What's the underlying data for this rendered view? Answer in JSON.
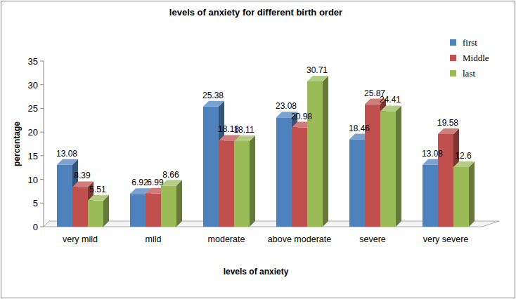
{
  "chart_data": {
    "type": "bar",
    "title": "levels of anxiety for different birth order",
    "x_label": "levels of anxiety",
    "y_label": "percentage",
    "categories": [
      "very mild",
      "mild",
      "moderate",
      "above moderate",
      "severe",
      "very severe"
    ],
    "series": [
      {
        "name": "first",
        "color": "#4f81bd",
        "values": [
          13.08,
          6.92,
          25.38,
          23.08,
          18.46,
          13.08
        ]
      },
      {
        "name": "Middle",
        "color": "#c0504d",
        "values": [
          8.39,
          6.99,
          18.18,
          20.98,
          25.87,
          19.58
        ]
      },
      {
        "name": "last",
        "color": "#9bbb59",
        "values": [
          5.51,
          8.66,
          18.11,
          30.71,
          24.41,
          12.6
        ]
      }
    ],
    "ylim": [
      0,
      35
    ],
    "yticks": [
      0,
      5,
      10,
      15,
      20,
      25,
      30,
      35
    ],
    "grid": false,
    "legend": "top-right",
    "data_labels": true
  }
}
